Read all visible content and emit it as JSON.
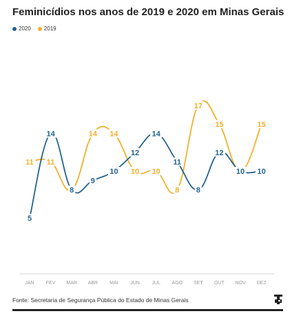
{
  "title": "Feminicídios nos anos de 2019 e 2020 em Minas Gerais",
  "source": "Fonte: Secretaria de Segurança Pública do Estado de Minas Gerais",
  "colors": {
    "series_2020": "#23638f",
    "series_2019": "#f3b02a",
    "axis": "#d6d6d6",
    "tick": "#999999"
  },
  "chart_data": {
    "type": "line",
    "categories": [
      "JAN",
      "FEV",
      "MAR",
      "ABR",
      "MAI",
      "JUN",
      "JUL",
      "AGO",
      "SET",
      "OUT",
      "NOV",
      "DEZ"
    ],
    "series": [
      {
        "name": "2020",
        "values": [
          5,
          14,
          8,
          9,
          10,
          12,
          14,
          11,
          8,
          12,
          10,
          10
        ]
      },
      {
        "name": "2019",
        "values": [
          11,
          11,
          8,
          14,
          14,
          10,
          10,
          8,
          17,
          15,
          10,
          15
        ]
      }
    ],
    "title": "Feminicídios nos anos de 2019 e 2020 em Minas Gerais",
    "xlabel": "",
    "ylabel": "",
    "ylim": [
      0,
      19
    ],
    "grid": false,
    "legend": "top-left"
  }
}
